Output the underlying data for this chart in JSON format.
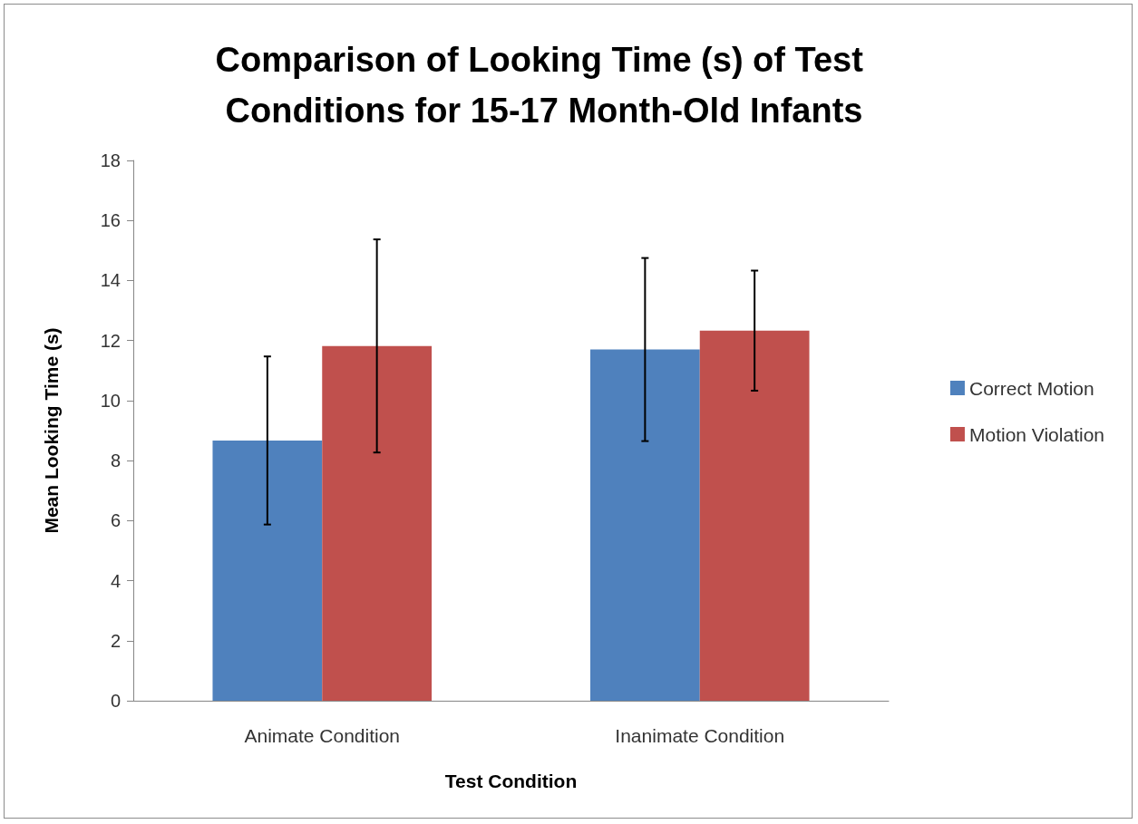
{
  "chart_data": {
    "type": "bar",
    "title": "Comparison of Looking Time (s) of Test Conditions for 15-17 Month-Old Infants",
    "xlabel": "Test Condition",
    "ylabel": "Mean Looking Time (s)",
    "categories": [
      "Animate Condition",
      "Inanimate Condition"
    ],
    "series": [
      {
        "name": "Correct Motion",
        "color": "#4f81bd",
        "values": [
          8.67,
          11.7
        ],
        "errors": [
          2.8,
          3.05
        ]
      },
      {
        "name": "Motion Violation",
        "color": "#c0504d",
        "values": [
          11.82,
          12.33
        ],
        "errors": [
          3.55,
          2.0
        ]
      }
    ],
    "ylim": [
      0,
      18
    ],
    "yticks": [
      0,
      2,
      4,
      6,
      8,
      10,
      12,
      14,
      16,
      18
    ],
    "grid": false,
    "legend": "right"
  }
}
